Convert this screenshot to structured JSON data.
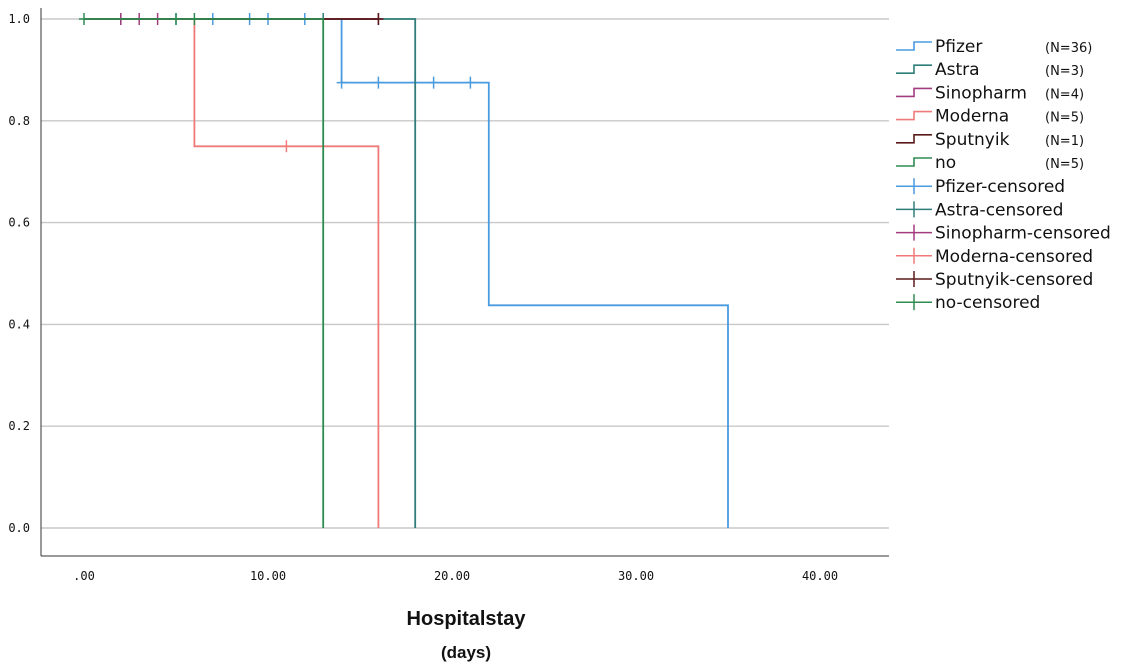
{
  "chart_data": {
    "type": "line",
    "subtype": "kaplan-meier step survival curves",
    "xlabel": "Hospitalstay",
    "xlabel_unit": "(days)",
    "ylabel": "",
    "xlim": [
      -2,
      44
    ],
    "ylim": [
      -0.05,
      1.03
    ],
    "x_ticks": [
      0,
      10,
      20,
      30,
      40
    ],
    "x_tick_labels": [
      ".00",
      "10.00",
      "20.00",
      "30.00",
      "40.00"
    ],
    "y_ticks": [
      0,
      0.2,
      0.4,
      0.6,
      0.8,
      1.0
    ],
    "y_tick_labels": [
      "0.0",
      "0.2",
      "0.4",
      "0.6",
      "0.8",
      "1.0"
    ],
    "grid": "horizontal",
    "legend_position": "right",
    "series": [
      {
        "name": "Pfizer",
        "n_label": "(N=36)",
        "color": "#4a9be0",
        "steps": [
          [
            0,
            1.0
          ],
          [
            14,
            1.0
          ],
          [
            14,
            0.875
          ],
          [
            22,
            0.875
          ],
          [
            22,
            0.4375
          ],
          [
            35,
            0.4375
          ],
          [
            35,
            0.0
          ]
        ],
        "censored": [
          [
            5,
            1.0
          ],
          [
            7,
            1.0
          ],
          [
            9,
            1.0
          ],
          [
            10,
            1.0
          ],
          [
            12,
            1.0
          ],
          [
            14,
            0.875
          ],
          [
            16,
            0.875
          ],
          [
            18,
            0.875
          ],
          [
            19,
            0.875
          ],
          [
            21,
            0.875
          ]
        ]
      },
      {
        "name": "Astra",
        "n_label": "(N=3)",
        "color": "#2e7d7a",
        "steps": [
          [
            0,
            1.0
          ],
          [
            18,
            1.0
          ],
          [
            18,
            0.0
          ]
        ],
        "censored": [
          [
            2,
            1.0
          ],
          [
            13,
            1.0
          ]
        ]
      },
      {
        "name": "Sinopharm",
        "n_label": "(N=4)",
        "color": "#a23c7e",
        "steps": [
          [
            0,
            1.0
          ],
          [
            16,
            1.0
          ]
        ],
        "censored": [
          [
            2,
            1.0
          ],
          [
            3,
            1.0
          ],
          [
            4,
            1.0
          ],
          [
            16,
            1.0
          ]
        ]
      },
      {
        "name": "Moderna",
        "n_label": "(N=5)",
        "color": "#f07a7a",
        "steps": [
          [
            0,
            1.0
          ],
          [
            6,
            1.0
          ],
          [
            6,
            0.75
          ],
          [
            16,
            0.75
          ],
          [
            16,
            0.0
          ]
        ],
        "censored": [
          [
            11,
            0.75
          ]
        ]
      },
      {
        "name": "Sputnyik",
        "n_label": "(N=1)",
        "color": "#5a1a1a",
        "steps": [
          [
            0,
            1.0
          ],
          [
            16,
            1.0
          ]
        ],
        "censored": [
          [
            16,
            1.0
          ]
        ]
      },
      {
        "name": "no",
        "n_label": "(N=5)",
        "color": "#2e8b50",
        "steps": [
          [
            0,
            1.0
          ],
          [
            13,
            1.0
          ],
          [
            13,
            0.0
          ]
        ],
        "censored": [
          [
            0,
            1.0
          ],
          [
            5,
            1.0
          ],
          [
            6,
            1.0
          ]
        ]
      }
    ]
  },
  "legend": {
    "line_items": [
      {
        "label": "Pfizer",
        "n": "(N=36)",
        "color": "#4a9be0"
      },
      {
        "label": "Astra",
        "n": "(N=3)",
        "color": "#2e7d7a"
      },
      {
        "label": "Sinopharm",
        "n": "(N=4)",
        "color": "#a23c7e"
      },
      {
        "label": "Moderna",
        "n": "(N=5)",
        "color": "#f07a7a"
      },
      {
        "label": "Sputnyik",
        "n": "(N=1)",
        "color": "#5a1a1a"
      },
      {
        "label": "no",
        "n": "(N=5)",
        "color": "#2e8b50"
      }
    ],
    "censor_items": [
      {
        "label": "Pfizer-censored",
        "color": "#4a9be0"
      },
      {
        "label": "Astra-censored",
        "color": "#2e7d7a"
      },
      {
        "label": "Sinopharm-censored",
        "color": "#a23c7e"
      },
      {
        "label": "Moderna-censored",
        "color": "#f07a7a"
      },
      {
        "label": "Sputnyik-censored",
        "color": "#5a1a1a"
      },
      {
        "label": "no-censored",
        "color": "#2e8b50"
      }
    ]
  }
}
